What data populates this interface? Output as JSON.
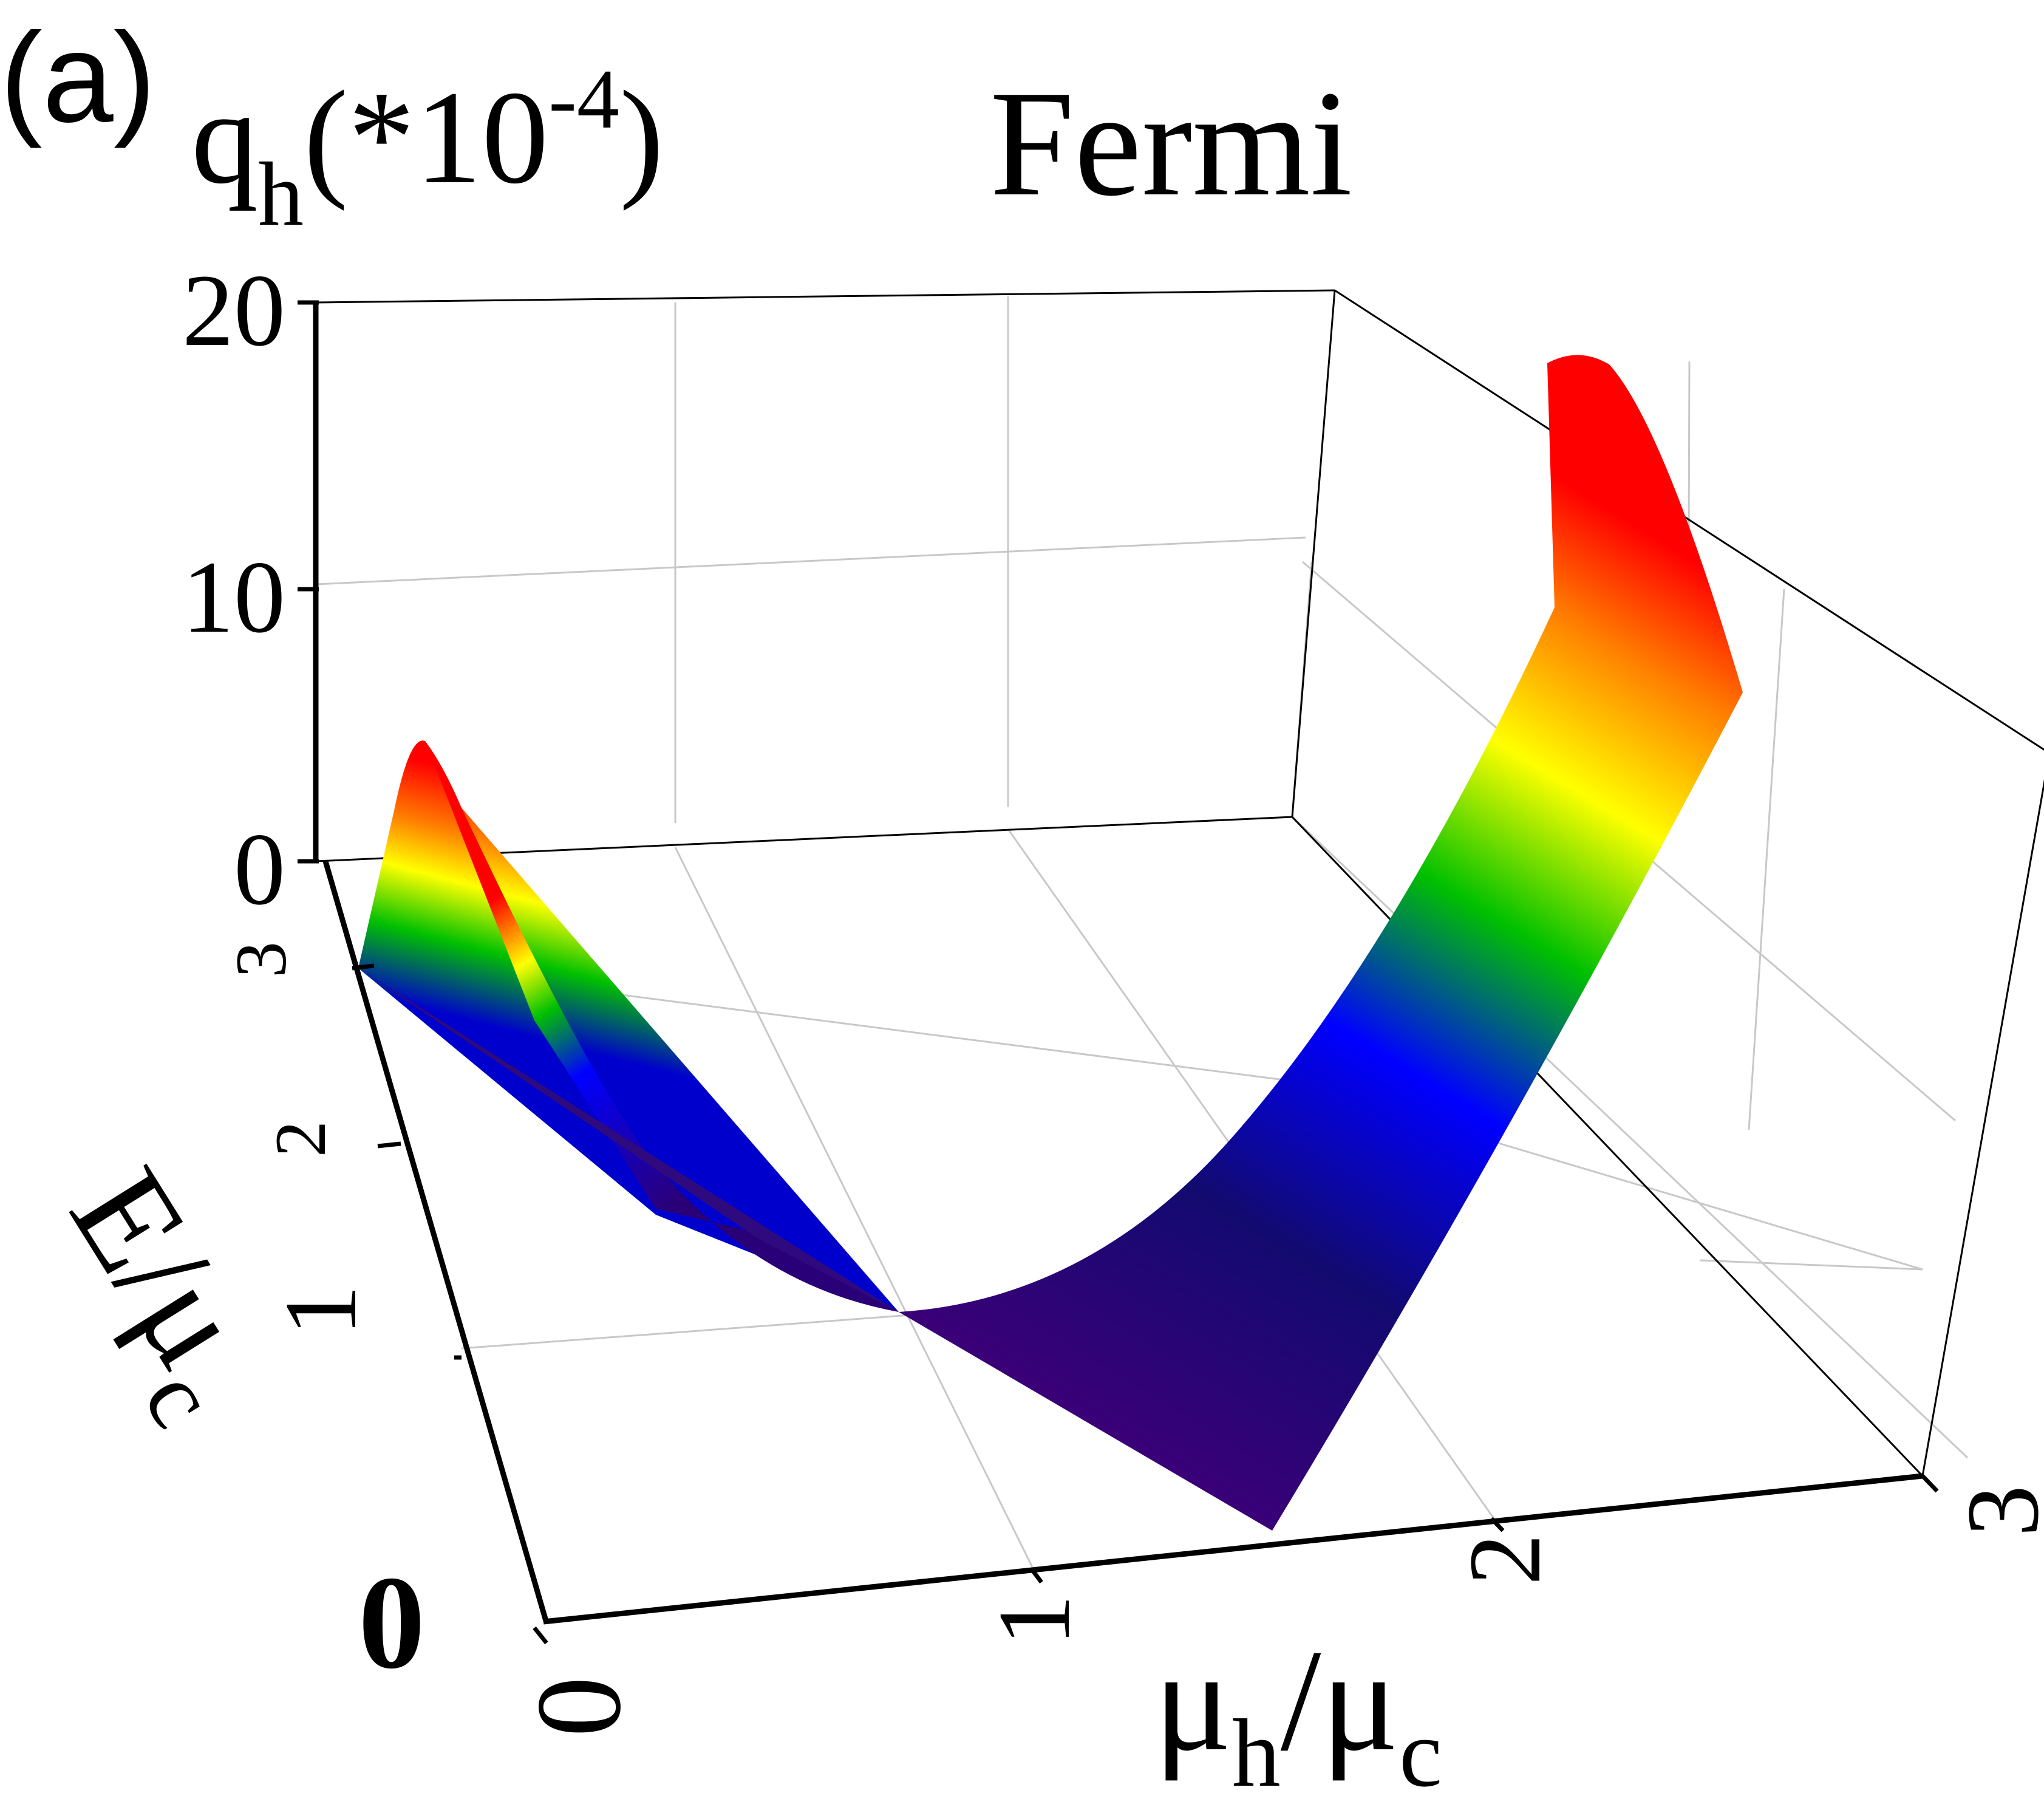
{
  "chart_data": {
    "type": "surface",
    "panel_label": "(a)",
    "title": "Fermi",
    "zlabel": {
      "main": "q",
      "sub": "h",
      "factor": "(*10",
      "exp": "-4",
      "close": ")"
    },
    "xlabel": {
      "main": "μ",
      "sub": "h",
      "sep": "/",
      "main2": "μ",
      "sub2": "c"
    },
    "ylabel": {
      "text": "E/μ",
      "sub": "c"
    },
    "xlim": [
      0,
      3
    ],
    "ylim": [
      0,
      3
    ],
    "zlim": [
      0,
      20
    ],
    "x_ticks": [
      "0",
      "1",
      "2",
      "3"
    ],
    "y_ticks": [
      "0",
      "1",
      "2",
      "3"
    ],
    "z_ticks": [
      "0",
      "10",
      "20"
    ],
    "surface": {
      "description_axes": [
        "mu_h/mu_c",
        "E/mu_c",
        "q_h (x1e-4)"
      ],
      "mu_h_range": [
        0,
        3
      ],
      "E_range": [
        0,
        3
      ],
      "minimum_line_mu_h": 1,
      "peak_value_at_mu_h_3": 20,
      "value_at_mu_h_0": 4
    },
    "colormap": [
      "#3a0078",
      "#0a0a7a",
      "#0000ff",
      "#00c000",
      "#ffff00",
      "#ff8000",
      "#ff0000"
    ],
    "grid": true
  }
}
